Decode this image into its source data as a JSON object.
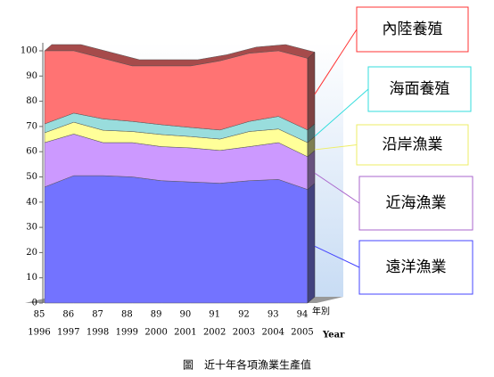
{
  "chart_data": {
    "type": "stacked-area",
    "title": "圖　近十年各項漁業生產值",
    "categories": [
      "85",
      "86",
      "87",
      "88",
      "89",
      "90",
      "91",
      "92",
      "93",
      "94"
    ],
    "categories_year": [
      "1996",
      "1997",
      "1998",
      "1999",
      "2000",
      "2001",
      "2002",
      "2003",
      "2004",
      "2005"
    ],
    "x_label": "年別",
    "x_label_en": "Year",
    "ylim": [
      0,
      100
    ],
    "yticks": [
      0,
      10,
      20,
      30,
      40,
      50,
      60,
      70,
      80,
      90,
      100
    ],
    "series": [
      {
        "name": "遠洋漁業",
        "color": "#7373ff",
        "values": [
          46,
          50.5,
          50.5,
          50,
          48.5,
          48,
          47.5,
          48.5,
          49,
          45
        ]
      },
      {
        "name": "近海漁業",
        "color": "#cc99ff",
        "values": [
          17.6,
          16.5,
          13.1,
          13.6,
          13.5,
          13.5,
          13,
          13.5,
          14.6,
          13
        ]
      },
      {
        "name": "沿岸漁業",
        "color": "#ffff99",
        "values": [
          3.9,
          4.7,
          4.9,
          4.4,
          4.8,
          4.5,
          4.5,
          6,
          5.4,
          5.6
        ]
      },
      {
        "name": "海面養殖",
        "color": "#99dddd",
        "values": [
          3.5,
          3.6,
          4.5,
          4,
          3.9,
          3.6,
          3.6,
          4,
          5,
          5
        ]
      },
      {
        "name": "內陸養殖",
        "color": "#ff7373",
        "values": [
          29,
          24.7,
          24,
          22,
          23.3,
          24.4,
          27.4,
          27,
          26,
          28.4
        ]
      }
    ]
  }
}
